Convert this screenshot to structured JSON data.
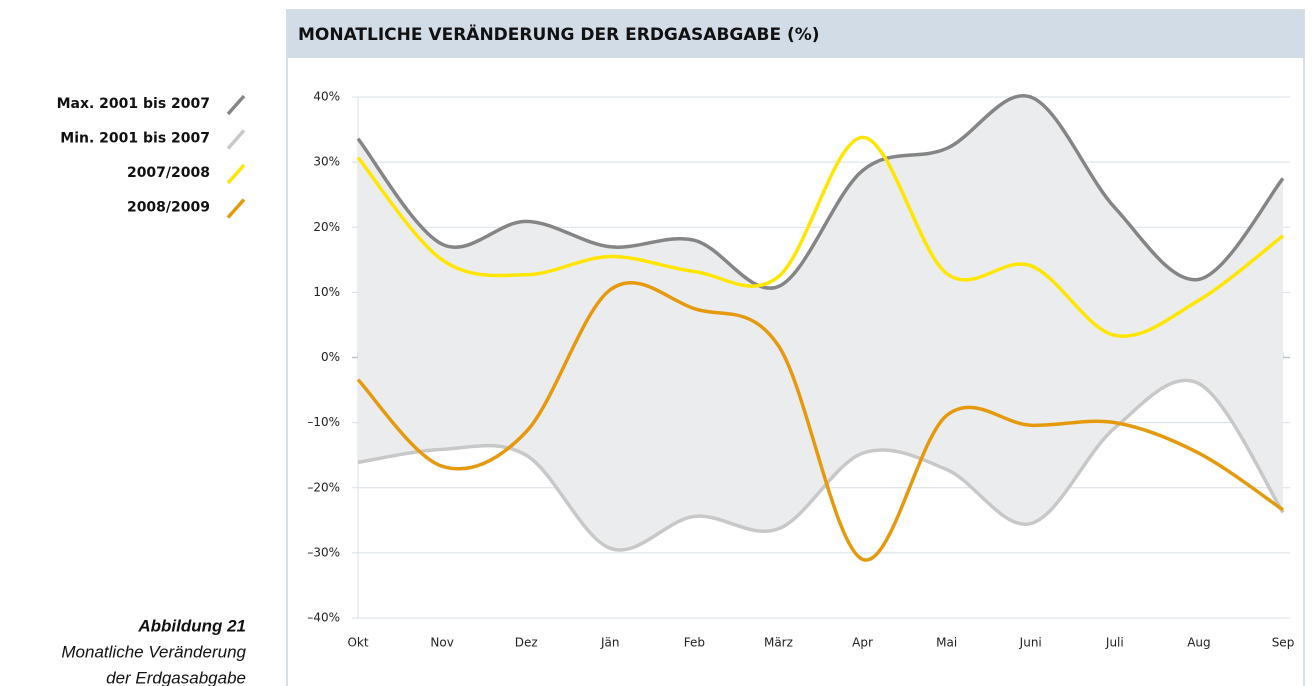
{
  "chart_data": {
    "type": "line",
    "title": "MONATLICHE VERÄNDERUNG DER ERDGASABGABE (%)",
    "caption": {
      "number": "Abbildung 21",
      "text": [
        "Monatliche Veränderung",
        "der Erdgasabgabe"
      ]
    },
    "categories": [
      "Okt",
      "Nov",
      "Dez",
      "Jän",
      "Feb",
      "März",
      "Apr",
      "Mai",
      "Juni",
      "Juli",
      "Aug",
      "Sep"
    ],
    "series": [
      {
        "name": "Max. 2001 bis 2007",
        "color": "#858585",
        "values": [
          33.6,
          17.4,
          20.9,
          17,
          18,
          10.9,
          28.7,
          32.1,
          40,
          23,
          12,
          27.5
        ]
      },
      {
        "name": "Min. 2001 bis 2007",
        "color": "#c8c8c8",
        "values": [
          -16.1,
          -14.1,
          -15,
          -29.3,
          -24.4,
          -26.3,
          -14.7,
          -17.2,
          -25.5,
          -10.8,
          -4,
          -23.8
        ]
      },
      {
        "name": "2007/2008",
        "color": "#ffe600",
        "values": [
          30.7,
          15,
          12.7,
          15.5,
          13.2,
          12.4,
          33.8,
          12.9,
          14.1,
          3.4,
          8.8,
          18.7
        ]
      },
      {
        "name": "2008/2009",
        "color": "#e59a0e",
        "values": [
          -3.4,
          -16.7,
          -11.4,
          10.4,
          7.5,
          1.8,
          -31,
          -8.9,
          -10.4,
          -10,
          -14.7,
          -23.4
        ]
      }
    ],
    "ylim": [
      -40,
      40
    ],
    "yticks": [
      {
        "value": -40,
        "label": "–40%"
      },
      {
        "value": -30,
        "label": "–30%"
      },
      {
        "value": -20,
        "label": "–20%"
      },
      {
        "value": -10,
        "label": "–10%"
      },
      {
        "value": 0,
        "label": "0%"
      },
      {
        "value": 10,
        "label": "10%"
      },
      {
        "value": 20,
        "label": "20%"
      },
      {
        "value": 30,
        "label": "30%"
      },
      {
        "value": 40,
        "label": "40%"
      }
    ],
    "grid": true,
    "range_fill": "#ebeced"
  }
}
